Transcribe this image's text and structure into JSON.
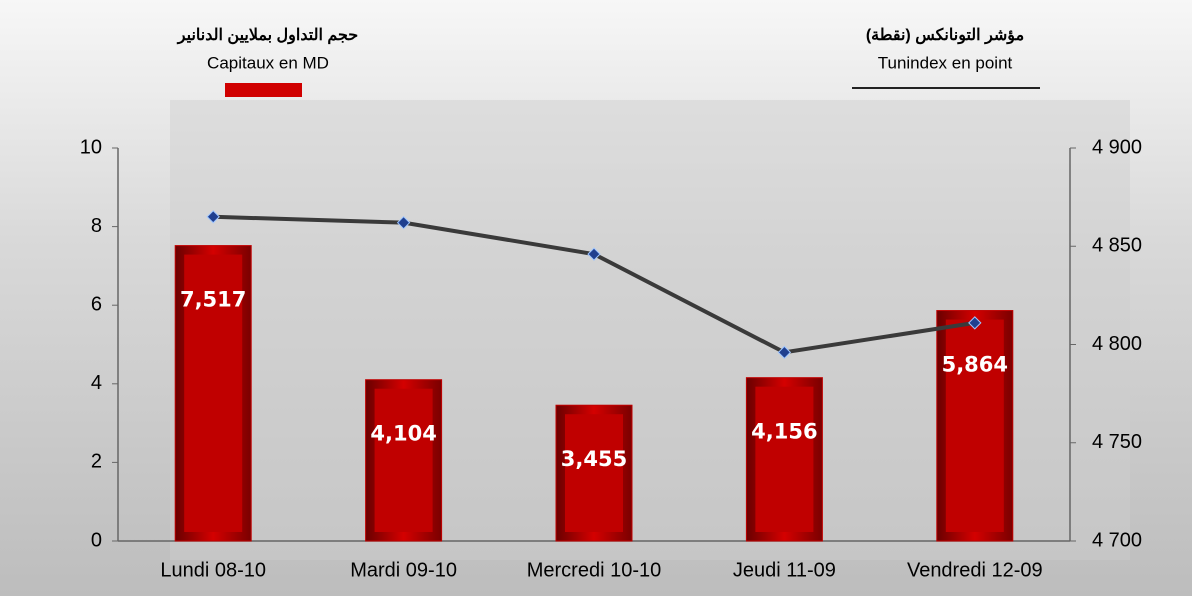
{
  "chart_data": {
    "type": "bar-line",
    "y_title_ar": "حجم التداول بملايين الدنانير",
    "y2_title_ar": "مؤشر التونانكس (نقطة)",
    "categories": [
      "Lundi 08-10",
      "Mardi 09-10",
      "Mercredi 10-10",
      "Jeudi 11-09",
      "Vendredi 12-09"
    ],
    "series": [
      {
        "name": "Capitaux en MD",
        "type": "bar",
        "color": "#c00000",
        "values": [
          7.517,
          4.104,
          3.455,
          4.156,
          5.864
        ],
        "value_labels": [
          "7,517",
          "4,104",
          "3,455",
          "4,156",
          "5,864"
        ]
      },
      {
        "name": "Tunindex en point",
        "type": "line",
        "axis": "y2",
        "color": "#3a3a3a",
        "marker_color": "#1f3f8f",
        "values": [
          4865,
          4862,
          4846,
          4796,
          4811
        ]
      }
    ],
    "ylim": [
      0,
      10
    ],
    "yticks": [
      0,
      2,
      4,
      6,
      8,
      10
    ],
    "y2lim": [
      4700,
      4900
    ],
    "y2ticks": [
      {
        "value": 4700,
        "label": "4 700"
      },
      {
        "value": 4750,
        "label": "4 750"
      },
      {
        "value": 4800,
        "label": "4 800"
      },
      {
        "value": 4850,
        "label": "4 850"
      },
      {
        "value": 4900,
        "label": "4 900"
      }
    ]
  }
}
